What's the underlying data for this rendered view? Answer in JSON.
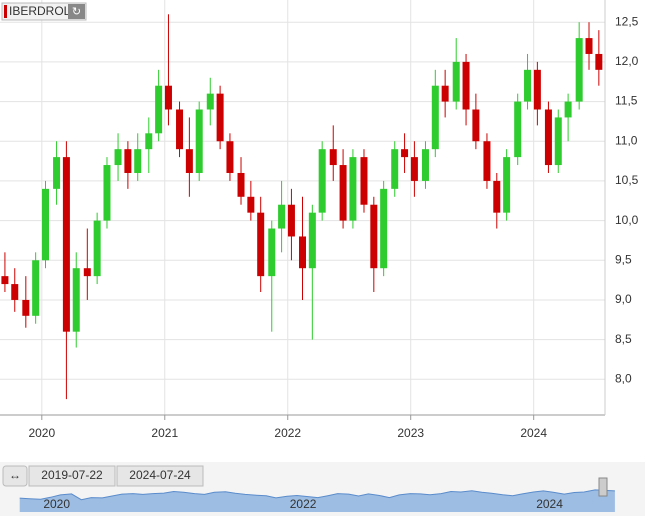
{
  "chart_data": {
    "type": "candlestick",
    "title": "IBERDROL",
    "x": [
      2019.7,
      2019.78,
      2019.87,
      2019.95,
      2020.03,
      2020.12,
      2020.2,
      2020.28,
      2020.37,
      2020.45,
      2020.53,
      2020.62,
      2020.7,
      2020.78,
      2020.87,
      2020.95,
      2021.03,
      2021.12,
      2021.2,
      2021.28,
      2021.37,
      2021.45,
      2021.53,
      2021.62,
      2021.7,
      2021.78,
      2021.87,
      2021.95,
      2022.03,
      2022.12,
      2022.2,
      2022.28,
      2022.37,
      2022.45,
      2022.53,
      2022.62,
      2022.7,
      2022.78,
      2022.87,
      2022.95,
      2023.03,
      2023.12,
      2023.2,
      2023.28,
      2023.37,
      2023.45,
      2023.53,
      2023.62,
      2023.7,
      2023.78,
      2023.87,
      2023.95,
      2024.03,
      2024.12,
      2024.2,
      2024.28,
      2024.37,
      2024.45,
      2024.53
    ],
    "open": [
      9.3,
      9.2,
      9.0,
      8.8,
      9.5,
      10.4,
      10.8,
      8.6,
      9.4,
      9.3,
      10.0,
      10.7,
      10.9,
      10.6,
      10.9,
      11.1,
      11.7,
      11.4,
      10.9,
      10.6,
      11.4,
      11.6,
      11.0,
      10.6,
      10.3,
      10.1,
      9.3,
      9.9,
      10.2,
      9.8,
      9.4,
      10.1,
      10.9,
      10.7,
      10.0,
      10.8,
      10.2,
      9.4,
      10.4,
      10.9,
      10.8,
      10.5,
      10.9,
      11.7,
      11.5,
      12.0,
      11.4,
      11.0,
      10.5,
      10.1,
      10.8,
      11.5,
      11.9,
      11.4,
      10.7,
      11.3,
      11.5,
      12.3,
      12.1
    ],
    "high": [
      9.6,
      9.4,
      9.3,
      9.6,
      10.5,
      11.0,
      11.0,
      9.6,
      9.9,
      10.1,
      10.8,
      11.1,
      11.0,
      11.1,
      11.3,
      11.9,
      12.6,
      11.5,
      11.3,
      11.5,
      11.8,
      11.7,
      11.1,
      10.8,
      10.5,
      10.3,
      10.0,
      10.5,
      10.4,
      10.3,
      10.2,
      11.0,
      11.2,
      10.9,
      10.9,
      10.9,
      10.3,
      10.5,
      11.0,
      11.1,
      11.0,
      11.0,
      11.9,
      11.9,
      12.3,
      12.1,
      11.6,
      11.1,
      10.6,
      10.9,
      11.6,
      12.1,
      12.0,
      11.5,
      11.4,
      11.6,
      12.5,
      12.5,
      12.4
    ],
    "low": [
      9.1,
      8.85,
      8.65,
      8.7,
      9.4,
      10.2,
      7.75,
      8.4,
      9.0,
      9.2,
      9.9,
      10.5,
      10.4,
      10.5,
      10.6,
      11.0,
      11.2,
      10.8,
      10.3,
      10.5,
      11.2,
      10.9,
      10.5,
      10.2,
      10.0,
      9.1,
      8.6,
      9.6,
      9.5,
      9.0,
      8.5,
      10.0,
      10.5,
      9.9,
      9.9,
      10.1,
      9.1,
      9.3,
      10.3,
      10.6,
      10.3,
      10.4,
      10.8,
      11.3,
      11.4,
      11.2,
      10.9,
      10.4,
      9.9,
      10.0,
      10.7,
      11.4,
      11.2,
      10.6,
      10.6,
      11.0,
      11.4,
      11.9,
      11.7
    ],
    "close": [
      9.2,
      9.0,
      8.8,
      9.5,
      10.4,
      10.8,
      8.6,
      9.4,
      9.3,
      10.0,
      10.7,
      10.9,
      10.6,
      10.9,
      11.1,
      11.7,
      11.4,
      10.9,
      10.6,
      11.4,
      11.6,
      11.0,
      10.6,
      10.3,
      10.1,
      9.3,
      9.9,
      10.2,
      9.8,
      9.4,
      10.1,
      10.9,
      10.7,
      10.0,
      10.8,
      10.2,
      9.4,
      10.4,
      10.9,
      10.8,
      10.5,
      10.9,
      11.7,
      11.5,
      12.0,
      11.4,
      11.0,
      10.5,
      10.1,
      10.8,
      11.5,
      11.9,
      11.4,
      10.7,
      11.3,
      11.5,
      12.3,
      12.1,
      11.9
    ],
    "up_color": "#2ecc2e",
    "down_color": "#cc0000",
    "xlim": [
      2019.66,
      2024.58
    ],
    "xticks": [
      2020,
      2021,
      2022,
      2023,
      2024
    ],
    "ylim": [
      7.55,
      12.78
    ],
    "yticks": [
      {
        "value": 8.0,
        "label": "8,0"
      },
      {
        "value": 8.5,
        "label": "8,5"
      },
      {
        "value": 9.0,
        "label": "9,0"
      },
      {
        "value": 9.5,
        "label": "9,5"
      },
      {
        "value": 10.0,
        "label": "10,0"
      },
      {
        "value": 10.5,
        "label": "10,5"
      },
      {
        "value": 11.0,
        "label": "11,0"
      },
      {
        "value": 11.5,
        "label": "11,5"
      },
      {
        "value": 12.0,
        "label": "12,0"
      },
      {
        "value": 12.5,
        "label": "12,5"
      }
    ],
    "grid": true,
    "navigator": {
      "from": "2019-07-22",
      "to": "2024-07-24",
      "xlim": [
        2019.54,
        2024.45
      ],
      "xticks": [
        2020,
        2022,
        2024
      ],
      "ylim": [
        4,
        13
      ],
      "color": "#9dbde2"
    }
  }
}
